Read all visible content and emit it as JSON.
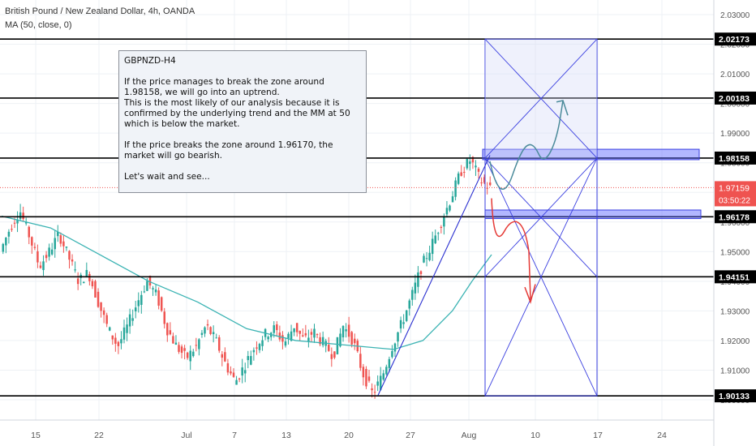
{
  "header": {
    "symbol_line": "British Pound / New Zealand Dollar, 4h, OANDA",
    "indicator_line": "MA (50, close, 0)"
  },
  "note": {
    "title": "GBPNZD-H4",
    "paragraphs": [
      "If the price manages to break the zone around 1.98158, we will go into an uptrend.",
      "This is the most likely of our analysis because it is confirmed by the underlying trend and the MM at 50 which is below the market.",
      "",
      "If the price breaks the zone around 1.96170, the market will go bearish.",
      "",
      "Let's wait and see..."
    ]
  },
  "chart_data": {
    "type": "candlestick",
    "title": "British Pound / New Zealand Dollar, 4h, OANDA",
    "xlabel": "",
    "ylabel": "",
    "ylim": [
      1.8975,
      2.0355
    ],
    "x_ticks": [
      "15",
      "22",
      "Jul",
      "7",
      "13",
      "20",
      "27",
      "Aug",
      "10",
      "17",
      "24"
    ],
    "y_ticks": [
      "1.90000",
      "1.91000",
      "1.92000",
      "1.93000",
      "1.94000",
      "1.95000",
      "1.96000",
      "1.97000",
      "1.98000",
      "1.99000",
      "2.00000",
      "2.01000",
      "2.02000",
      "2.03000"
    ],
    "horizontal_levels": [
      {
        "value": 2.02173,
        "label": "2.02173"
      },
      {
        "value": 2.00183,
        "label": "2.00183"
      },
      {
        "value": 1.98158,
        "label": "1.98158"
      },
      {
        "value": 1.96178,
        "label": "1.96178"
      },
      {
        "value": 1.94151,
        "label": "1.94151"
      },
      {
        "value": 1.90133,
        "label": "1.90133"
      }
    ],
    "current_price": {
      "value": 1.97159,
      "label": "1.97159",
      "countdown": "03:50:22"
    },
    "zones": [
      {
        "from": 1.98158,
        "to": 1.984
      },
      {
        "from": 1.9617,
        "to": 1.9635
      }
    ],
    "price_path_approx": [
      [
        0,
        1.95
      ],
      [
        1,
        1.958
      ],
      [
        2,
        1.964
      ],
      [
        3,
        1.955
      ],
      [
        4,
        1.945
      ],
      [
        5,
        1.95
      ],
      [
        6,
        1.956
      ],
      [
        7,
        1.948
      ],
      [
        8,
        1.94
      ],
      [
        9,
        1.943
      ],
      [
        10,
        1.933
      ],
      [
        11,
        1.924
      ],
      [
        12,
        1.918
      ],
      [
        13,
        1.925
      ],
      [
        14,
        1.933
      ],
      [
        15,
        1.94
      ],
      [
        16,
        1.935
      ],
      [
        17,
        1.924
      ],
      [
        18,
        1.918
      ],
      [
        19,
        1.914
      ],
      [
        20,
        1.918
      ],
      [
        21,
        1.925
      ],
      [
        22,
        1.92
      ],
      [
        23,
        1.912
      ],
      [
        24,
        1.906
      ],
      [
        25,
        1.912
      ],
      [
        26,
        1.918
      ],
      [
        27,
        1.922
      ],
      [
        28,
        1.924
      ],
      [
        29,
        1.919
      ],
      [
        30,
        1.925
      ],
      [
        31,
        1.92
      ],
      [
        32,
        1.923
      ],
      [
        33,
        1.919
      ],
      [
        34,
        1.915
      ],
      [
        35,
        1.925
      ],
      [
        36,
        1.92
      ],
      [
        37,
        1.909
      ],
      [
        38,
        1.902
      ],
      [
        39,
        1.908
      ],
      [
        40,
        1.918
      ],
      [
        41,
        1.926
      ],
      [
        42,
        1.935
      ],
      [
        43,
        1.945
      ],
      [
        44,
        1.952
      ],
      [
        45,
        1.96
      ],
      [
        46,
        1.968
      ],
      [
        47,
        1.977
      ],
      [
        48,
        1.981
      ],
      [
        49,
        1.974
      ],
      [
        50,
        1.9715
      ]
    ],
    "ma50_path_approx": [
      [
        0,
        1.962
      ],
      [
        5,
        1.958
      ],
      [
        10,
        1.949
      ],
      [
        15,
        1.94
      ],
      [
        20,
        1.933
      ],
      [
        25,
        1.924
      ],
      [
        30,
        1.92
      ],
      [
        35,
        1.9185
      ],
      [
        40,
        1.917
      ],
      [
        43,
        1.92
      ],
      [
        46,
        1.93
      ],
      [
        48,
        1.94
      ],
      [
        50,
        1.949
      ]
    ],
    "grid": true,
    "legend": "none"
  }
}
